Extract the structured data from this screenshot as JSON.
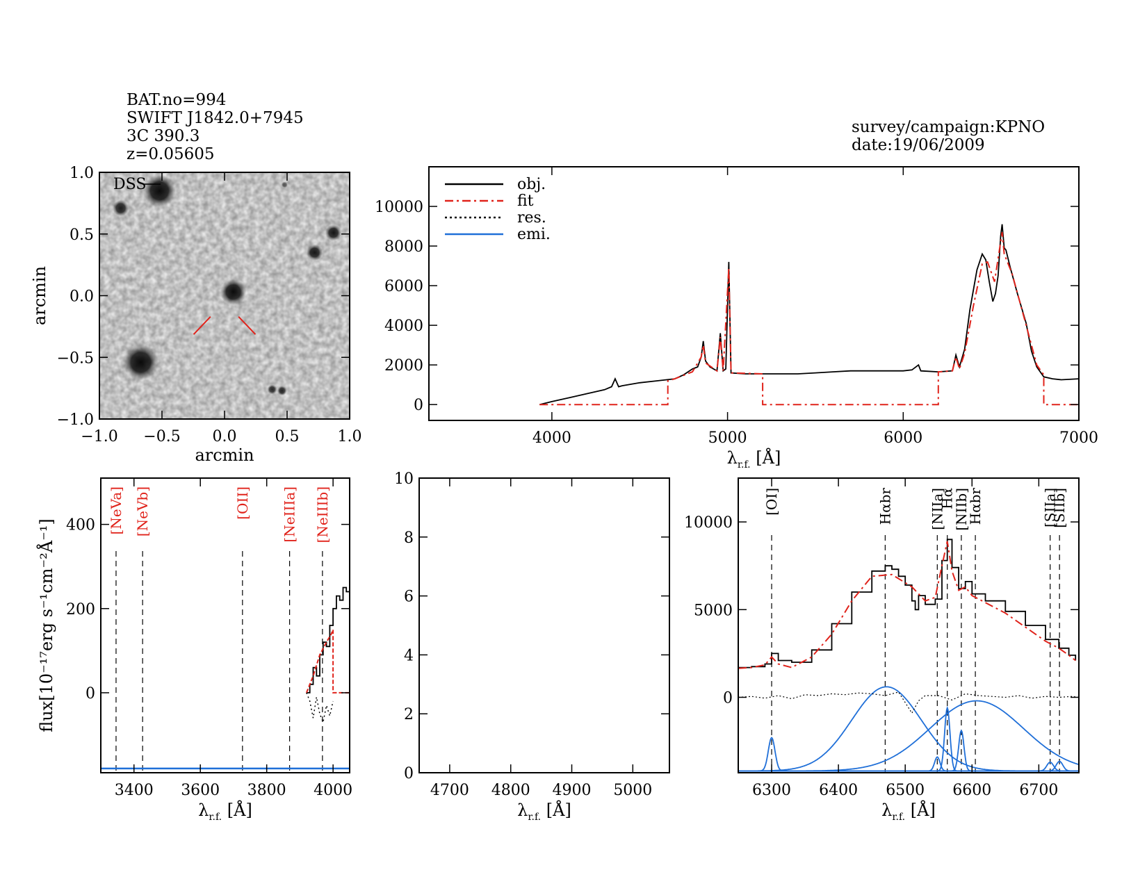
{
  "header": {
    "object_lines": [
      "BAT.no=994",
      "SWIFT J1842.0+7945",
      "3C 390.3",
      "z=0.05605"
    ],
    "survey_lines": [
      "survey/campaign:KPNO",
      "date:19/06/2009"
    ]
  },
  "colors": {
    "obj": "#000000",
    "fit": "#e0231b",
    "res": "#000000",
    "emi": "#1f6fd8",
    "linelabel": "#e0231b"
  },
  "chart_data": [
    {
      "id": "image",
      "type": "heatmap",
      "image_label": "DSS",
      "xlabel": "arcmin",
      "ylabel": "arcmin",
      "xlim": [
        -1.0,
        1.0
      ],
      "ylim": [
        -1.0,
        1.0
      ],
      "xticks": [
        -1.0,
        -0.5,
        0.0,
        0.5,
        1.0
      ],
      "yticks": [
        -1.0,
        -0.5,
        0.0,
        0.5,
        1.0
      ],
      "xtick_labels": [
        "−1.0",
        "−0.5",
        "0.0",
        "0.5",
        "1.0"
      ],
      "ytick_labels": [
        "−1.0",
        "−0.5",
        "0.0",
        "0.5",
        "1.0"
      ],
      "sources": [
        {
          "x": -0.52,
          "y": 0.85,
          "r": 0.1,
          "a": 0.95
        },
        {
          "x": -0.83,
          "y": 0.71,
          "r": 0.05,
          "a": 0.85
        },
        {
          "x": 0.07,
          "y": 0.03,
          "r": 0.08,
          "a": 0.95
        },
        {
          "x": -0.67,
          "y": -0.54,
          "r": 0.11,
          "a": 0.95
        },
        {
          "x": 0.72,
          "y": 0.35,
          "r": 0.05,
          "a": 0.9
        },
        {
          "x": 0.87,
          "y": 0.51,
          "r": 0.05,
          "a": 0.9
        },
        {
          "x": 0.38,
          "y": -0.76,
          "r": 0.03,
          "a": 0.8
        },
        {
          "x": 0.46,
          "y": -0.77,
          "r": 0.03,
          "a": 0.8
        },
        {
          "x": 0.48,
          "y": 0.9,
          "r": 0.02,
          "a": 0.6
        }
      ],
      "marker": {
        "offset": 0.16,
        "length": 0.18
      }
    },
    {
      "id": "full",
      "type": "line",
      "xlabel": "λ",
      "xlabel_sub": "r.f.",
      "xlabel_unit": " [Å]",
      "ylabel": "flux[10⁻¹⁷erg s⁻¹cm⁻²Å⁻¹]",
      "xlim": [
        3300,
        7000
      ],
      "ylim": [
        -800,
        12000
      ],
      "xticks": [
        4000,
        5000,
        6000,
        7000
      ],
      "yticks": [
        0,
        2000,
        4000,
        6000,
        8000,
        10000
      ],
      "legend": [
        "obj.",
        "fit",
        "res.",
        "emi."
      ],
      "legend_position": "top-left",
      "series": [
        {
          "name": "obj.",
          "x": [
            3930,
            4000,
            4100,
            4200,
            4300,
            4340,
            4360,
            4380,
            4400,
            4500,
            4600,
            4700,
            4750,
            4800,
            4830,
            4850,
            4862,
            4875,
            4900,
            4940,
            4959,
            4975,
            4990,
            5007,
            5020,
            5100,
            5200,
            5300,
            5400,
            5500,
            5600,
            5700,
            5800,
            5876,
            5900,
            6000,
            6050,
            6087,
            6100,
            6200,
            6280,
            6300,
            6320,
            6350,
            6380,
            6420,
            6450,
            6470,
            6490,
            6510,
            6525,
            6540,
            6555,
            6563,
            6575,
            6585,
            6610,
            6650,
            6700,
            6730,
            6760,
            6800,
            6850,
            6900,
            7000
          ],
          "y": [
            0,
            150,
            350,
            550,
            750,
            900,
            1300,
            900,
            950,
            1100,
            1200,
            1300,
            1500,
            1800,
            1900,
            2400,
            3200,
            2200,
            1900,
            1700,
            3600,
            1700,
            1800,
            7200,
            1600,
            1550,
            1550,
            1550,
            1550,
            1600,
            1650,
            1700,
            1700,
            1700,
            1700,
            1700,
            1750,
            2000,
            1700,
            1650,
            1700,
            2500,
            1900,
            2800,
            4800,
            6800,
            7600,
            7300,
            6200,
            5200,
            5600,
            6500,
            8500,
            9100,
            7900,
            7800,
            6900,
            5600,
            4100,
            2700,
            1900,
            1400,
            1300,
            1250,
            1300
          ]
        },
        {
          "name": "fit",
          "x": [
            3930,
            4660,
            4660,
            4700,
            4800,
            4850,
            4862,
            4875,
            4940,
            4959,
            4975,
            5007,
            5020,
            5200,
            5200,
            6200,
            6200,
            6280,
            6300,
            6320,
            6350,
            6400,
            6450,
            6480,
            6520,
            6563,
            6575,
            6620,
            6700,
            6760,
            6800,
            6800,
            7000
          ],
          "y": [
            0,
            0,
            1200,
            1300,
            1650,
            2400,
            3000,
            2100,
            1700,
            3400,
            1700,
            6900,
            1600,
            1550,
            0,
            0,
            1650,
            1700,
            2400,
            1800,
            2600,
            5000,
            7100,
            7200,
            6200,
            8700,
            7600,
            6600,
            4000,
            2000,
            1500,
            0,
            0
          ]
        }
      ]
    },
    {
      "id": "hbeta_region",
      "type": "line",
      "xlabel": "λ",
      "xlabel_sub": "r.f.",
      "xlabel_unit": " [Å]",
      "ylabel": "",
      "xlim": [
        4650,
        5060
      ],
      "ylim": [
        0,
        10
      ],
      "xticks": [
        4700,
        4800,
        4900,
        5000
      ],
      "yticks": [
        0,
        2,
        4,
        6,
        8,
        10
      ],
      "series": []
    }
  ],
  "panel_low": {
    "type": "line",
    "xlabel": "λ",
    "xlabel_sub": "r.f.",
    "xlabel_unit": " [Å]",
    "ylabel": "flux[10⁻¹⁷erg s⁻¹cm⁻²Å⁻¹]",
    "xlim": [
      3300,
      4050
    ],
    "ylim": [
      -190,
      510
    ],
    "xticks": [
      3400,
      3600,
      3800,
      4000
    ],
    "yticks": [
      0,
      200,
      400
    ],
    "lines": [
      {
        "name": "[NeVa]",
        "x": 3346
      },
      {
        "name": "[NeVb]",
        "x": 3426
      },
      {
        "name": "[OII]",
        "x": 3727
      },
      {
        "name": "[NeIIIa]",
        "x": 3869
      },
      {
        "name": "[NeIIIb]",
        "x": 3968
      }
    ],
    "series": [
      {
        "name": "obj.",
        "x": [
          3920,
          3930,
          3940,
          3950,
          3960,
          3970,
          3980,
          3990,
          4000,
          4010,
          4020,
          4030,
          4040,
          4050
        ],
        "y": [
          0,
          20,
          60,
          40,
          90,
          120,
          110,
          160,
          200,
          230,
          220,
          250,
          240,
          260
        ]
      },
      {
        "name": "fit",
        "x": [
          3920,
          3940,
          3960,
          3980,
          3995,
          4000,
          4000,
          4050
        ],
        "y": [
          0,
          40,
          90,
          120,
          140,
          150,
          0,
          0
        ]
      },
      {
        "name": "res.",
        "x": [
          3920,
          3930,
          3940,
          3950,
          3960,
          3970,
          3980,
          3990,
          4000
        ],
        "y": [
          0,
          -20,
          -60,
          -10,
          -50,
          -70,
          -30,
          -55,
          -20
        ]
      },
      {
        "name": "emi.",
        "x": [
          3300,
          4050
        ],
        "y": [
          -180,
          -180
        ]
      }
    ]
  },
  "panel_halpha": {
    "type": "line",
    "xlabel": "λ",
    "xlabel_sub": "r.f.",
    "xlabel_unit": " [Å]",
    "xlim": [
      6250,
      6760
    ],
    "ylim": [
      -4300,
      12500
    ],
    "xticks": [
      6300,
      6400,
      6500,
      6600,
      6700
    ],
    "yticks": [
      0,
      5000,
      10000
    ],
    "lines": [
      {
        "name": "[OI]",
        "x": 6300
      },
      {
        "name": "Hαbr",
        "x": 6470
      },
      {
        "name": "[NIIa]",
        "x": 6548
      },
      {
        "name": "Hα",
        "x": 6563
      },
      {
        "name": "[NIIb]",
        "x": 6584
      },
      {
        "name": "Hαbr",
        "x": 6605
      },
      {
        "name": "[SIIa]",
        "x": 6717
      },
      {
        "name": "[SIIb]",
        "x": 6731
      }
    ],
    "series": [
      {
        "name": "obj.",
        "x": [
          6250,
          6270,
          6290,
          6300,
          6310,
          6330,
          6360,
          6390,
          6420,
          6450,
          6470,
          6480,
          6490,
          6500,
          6510,
          6515,
          6520,
          6530,
          6545,
          6555,
          6563,
          6570,
          6580,
          6590,
          6600,
          6620,
          6650,
          6680,
          6710,
          6730,
          6745,
          6755
        ],
        "y": [
          1700,
          1750,
          1900,
          2500,
          2100,
          2000,
          2700,
          4200,
          6000,
          7200,
          7500,
          7300,
          6900,
          6400,
          5500,
          5000,
          5800,
          5300,
          5600,
          7800,
          9000,
          7400,
          6200,
          6600,
          5900,
          5500,
          4900,
          4100,
          3300,
          2800,
          2400,
          2100
        ]
      },
      {
        "name": "fit",
        "x": [
          6250,
          6270,
          6290,
          6300,
          6310,
          6330,
          6360,
          6390,
          6420,
          6450,
          6480,
          6510,
          6530,
          6545,
          6555,
          6563,
          6570,
          6580,
          6590,
          6600,
          6620,
          6650,
          6680,
          6710,
          6730,
          6745,
          6755
        ],
        "y": [
          1650,
          1700,
          1850,
          2300,
          1900,
          1700,
          2300,
          3600,
          5500,
          6900,
          7000,
          6300,
          5500,
          5700,
          7500,
          8900,
          7200,
          6100,
          6300,
          5800,
          5400,
          4800,
          4000,
          3200,
          2800,
          2400,
          2100
        ]
      },
      {
        "name": "res.",
        "x": [
          6250,
          6270,
          6290,
          6310,
          6330,
          6350,
          6370,
          6390,
          6410,
          6430,
          6450,
          6470,
          6490,
          6500,
          6510,
          6520,
          6530,
          6550,
          6570,
          6590,
          6610,
          6630,
          6650,
          6670,
          6690,
          6710,
          6730,
          6750,
          6760
        ],
        "y": [
          0,
          50,
          -50,
          100,
          -80,
          150,
          100,
          200,
          150,
          250,
          200,
          100,
          300,
          -300,
          -900,
          -200,
          100,
          100,
          -150,
          200,
          100,
          50,
          0,
          100,
          -50,
          50,
          0,
          50,
          0
        ]
      }
    ],
    "components": [
      {
        "name": "[OI]",
        "center": 6300,
        "amp": 1900,
        "sigma": 5
      },
      {
        "name": "Hαbr",
        "center": 6472,
        "amp": 4800,
        "sigma": 52
      },
      {
        "name": "Hαbr",
        "center": 6607,
        "amp": 4000,
        "sigma": 70
      },
      {
        "name": "[NIIa]",
        "center": 6548,
        "amp": 800,
        "sigma": 4
      },
      {
        "name": "Hα",
        "center": 6563,
        "amp": 3600,
        "sigma": 4
      },
      {
        "name": "[NIIb]",
        "center": 6584,
        "amp": 2300,
        "sigma": 4
      },
      {
        "name": "[SIIa]",
        "center": 6717,
        "amp": 500,
        "sigma": 5
      },
      {
        "name": "[SIIb]",
        "center": 6731,
        "amp": 550,
        "sigma": 5
      }
    ],
    "emi_baseline": -4200
  }
}
